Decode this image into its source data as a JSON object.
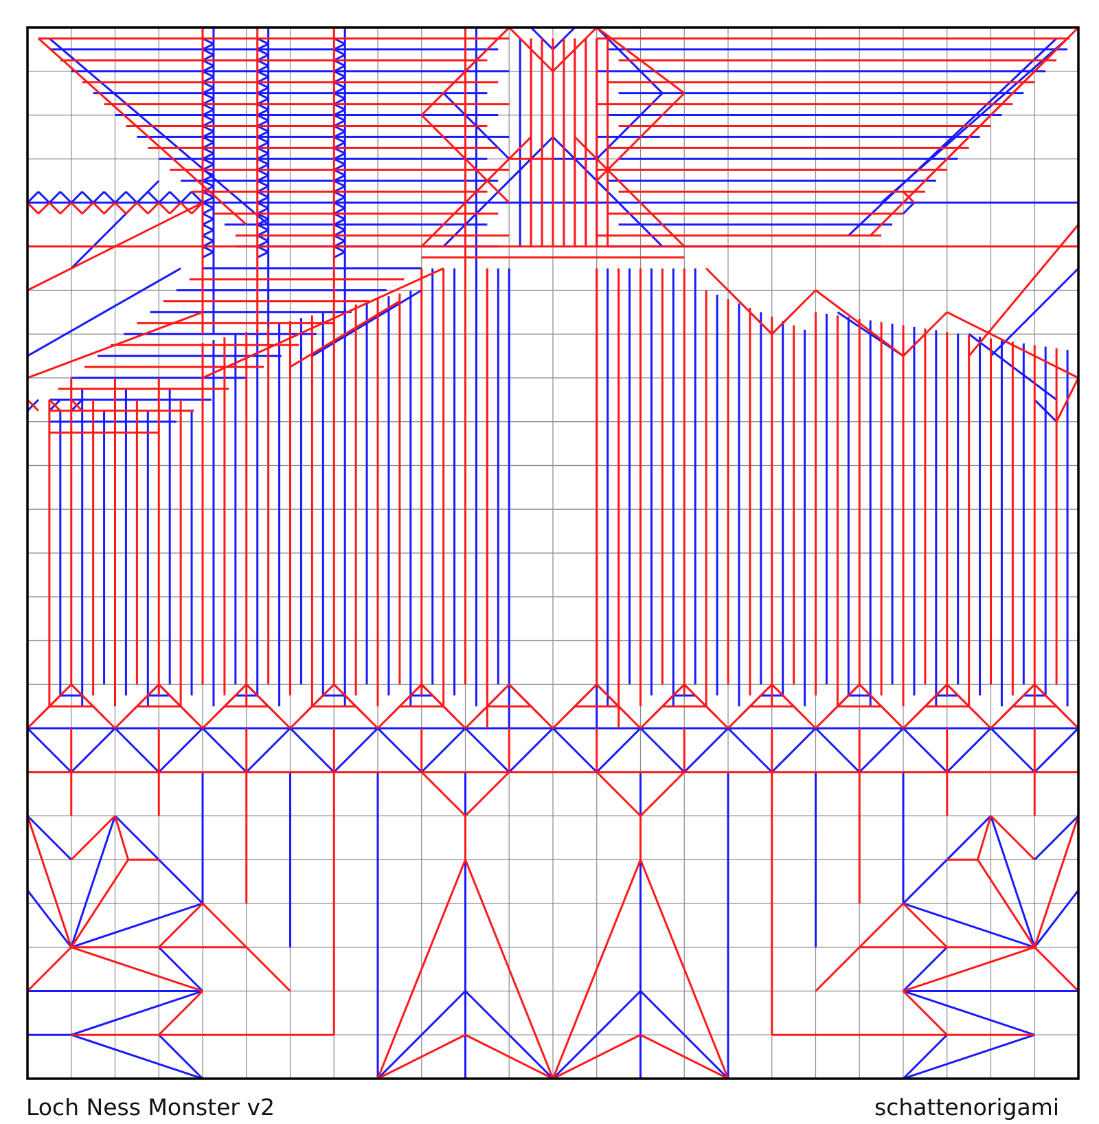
{
  "title": "Loch Ness Monster v2",
  "author": "schattenorigami",
  "colors": {
    "mountain": "#ff1a1a",
    "valley": "#1a1aff",
    "grid": "#8a8a8a",
    "border": "#000000"
  },
  "grid_divisions": 24
}
